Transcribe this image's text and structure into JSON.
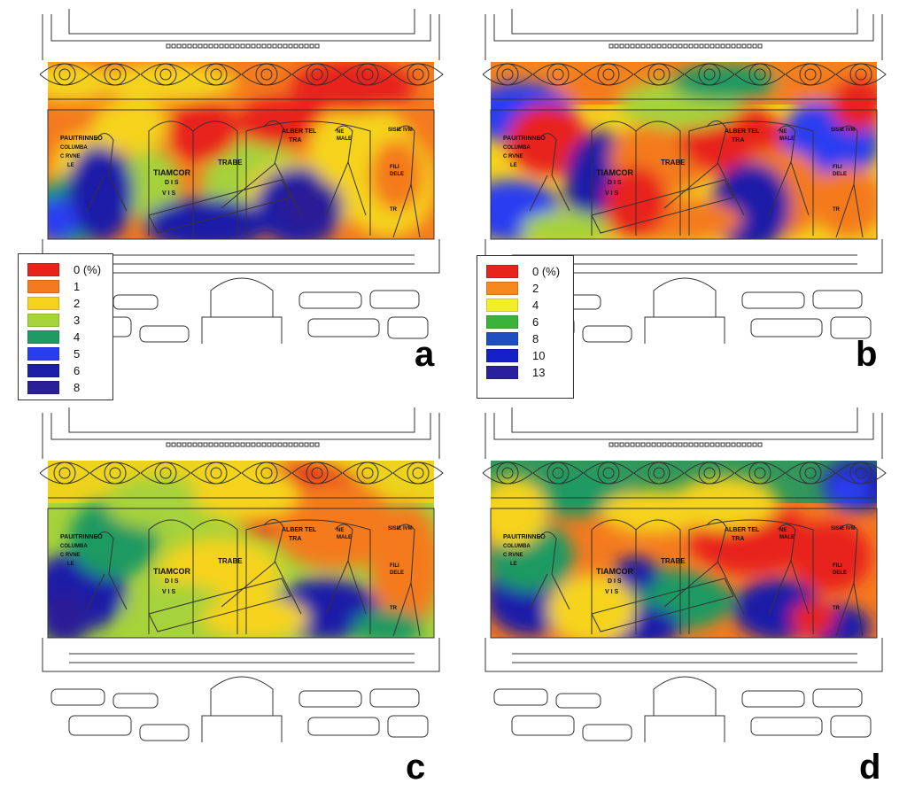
{
  "panels": [
    {
      "id": "a",
      "letter": "a",
      "legend": [
        {
          "label": "0 (%)",
          "color": "#e8231c"
        },
        {
          "label": "1",
          "color": "#f47a1f"
        },
        {
          "label": "2",
          "color": "#f5d31a"
        },
        {
          "label": "3",
          "color": "#a6d23a"
        },
        {
          "label": "4",
          "color": "#1e9a62"
        },
        {
          "label": "5",
          "color": "#2a3cf0"
        },
        {
          "label": "6",
          "color": "#1b1fa8"
        },
        {
          "label": "8",
          "color": "#2b1f96"
        }
      ]
    },
    {
      "id": "b",
      "letter": "b",
      "legend": [
        {
          "label": "0 (%)",
          "color": "#e8231c"
        },
        {
          "label": "2",
          "color": "#f5891f"
        },
        {
          "label": "4",
          "color": "#f2ee2a"
        },
        {
          "label": "6",
          "color": "#3bb33a"
        },
        {
          "label": "8",
          "color": "#1e4ec0"
        },
        {
          "label": "10",
          "color": "#1620c8"
        },
        {
          "label": "13",
          "color": "#2a1f9c"
        }
      ]
    },
    {
      "id": "c",
      "letter": "c",
      "legend": []
    },
    {
      "id": "d",
      "letter": "d",
      "legend": []
    }
  ],
  "inscriptions": {
    "left": "PAUITRINNEO",
    "left2": "COLUMBA",
    "left3": "C RVNE",
    "left4": "LE",
    "tiamcor": "TIAMCOR",
    "dis": "D I S",
    "vis": "V I S",
    "trabe": "TRABE",
    "alber": "ALBER TEL",
    "tra": "TRA",
    "ne": "NE",
    "male": "MALE",
    "sigis": "SISIE IVM",
    "fili": "FILI",
    "dele": "DELE",
    "tr": "TR"
  },
  "colors": {
    "red": "#e8231c",
    "orange": "#f47a1f",
    "yellow": "#f5d31a",
    "light_green": "#a6d23a",
    "green": "#1e9a62",
    "blue": "#2a3cf0",
    "dark_blue": "#1b1fa8",
    "indigo": "#2b1f96"
  }
}
